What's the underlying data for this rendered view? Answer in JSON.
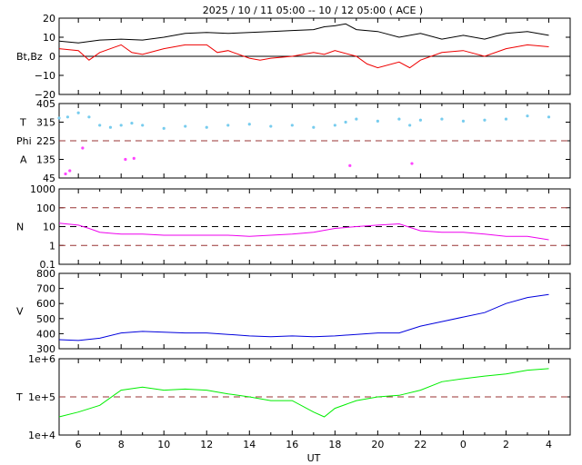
{
  "chart_data": {
    "type": "line",
    "title": "2025 / 10 / 11   05:00 -- 10 / 12   05:00 ( ACE )",
    "xlabel": "UT",
    "x_ticks": [
      "6",
      "8",
      "10",
      "12",
      "14",
      "16",
      "18",
      "20",
      "22",
      "0",
      "2",
      "4"
    ],
    "x_tick_hours": [
      6,
      8,
      10,
      12,
      14,
      16,
      18,
      20,
      22,
      24,
      26,
      28
    ],
    "x_range_hours": [
      5.1,
      29.0
    ],
    "panels": [
      {
        "id": "mag",
        "ylabel": "Bt,Bz",
        "ylim": [
          -20,
          20
        ],
        "y_ticks": [
          {
            "v": 20,
            "t": "20"
          },
          {
            "v": 10,
            "t": "10"
          },
          {
            "v": 0,
            "t": "0"
          },
          {
            "v": -10,
            "t": "−10"
          },
          {
            "v": -20,
            "t": "−20"
          }
        ],
        "ref_lines": [
          {
            "v": 0,
            "style": "solid",
            "color": "#000000"
          }
        ],
        "series": [
          {
            "color": "#000000",
            "points": [
              [
                5.1,
                8
              ],
              [
                6,
                7
              ],
              [
                7,
                8.5
              ],
              [
                8,
                9
              ],
              [
                9,
                8.5
              ],
              [
                10,
                10
              ],
              [
                11,
                12
              ],
              [
                12,
                12.5
              ],
              [
                13,
                12
              ],
              [
                14,
                12.5
              ],
              [
                15,
                13
              ],
              [
                16,
                13.5
              ],
              [
                17,
                14
              ],
              [
                17.5,
                15.5
              ],
              [
                18,
                16
              ],
              [
                18.5,
                17
              ],
              [
                19,
                14
              ],
              [
                20,
                13
              ],
              [
                21,
                10
              ],
              [
                22,
                12
              ],
              [
                23,
                9
              ],
              [
                24,
                11
              ],
              [
                25,
                9
              ],
              [
                26,
                12
              ],
              [
                27,
                13
              ],
              [
                28,
                11
              ]
            ]
          },
          {
            "color": "#ee0000",
            "points": [
              [
                5.1,
                4
              ],
              [
                6,
                3
              ],
              [
                6.5,
                -2
              ],
              [
                7,
                2
              ],
              [
                8,
                6
              ],
              [
                8.5,
                2
              ],
              [
                9,
                1
              ],
              [
                10,
                4
              ],
              [
                11,
                6
              ],
              [
                12,
                6
              ],
              [
                12.5,
                2
              ],
              [
                13,
                3
              ],
              [
                14,
                -1
              ],
              [
                14.5,
                -2
              ],
              [
                15,
                -1
              ],
              [
                16,
                0
              ],
              [
                17,
                2
              ],
              [
                17.5,
                1
              ],
              [
                18,
                3
              ],
              [
                19,
                0
              ],
              [
                19.5,
                -4
              ],
              [
                20,
                -6
              ],
              [
                21,
                -3
              ],
              [
                21.5,
                -6
              ],
              [
                22,
                -2
              ],
              [
                23,
                2
              ],
              [
                24,
                3
              ],
              [
                25,
                0
              ],
              [
                26,
                4
              ],
              [
                27,
                6
              ],
              [
                28,
                5
              ]
            ]
          }
        ]
      },
      {
        "id": "theta",
        "ylabel_top": "T",
        "ylabel_mid": "Phi",
        "ylabel_bottom": "A",
        "ylim": [
          45,
          405
        ],
        "y_ticks": [
          {
            "v": 405,
            "t": "405"
          },
          {
            "v": 315,
            "t": "315"
          },
          {
            "v": 225,
            "t": "225"
          },
          {
            "v": 135,
            "t": "135"
          },
          {
            "v": 45,
            "t": "45"
          }
        ],
        "ref_lines": [
          {
            "v": 225,
            "style": "dashed",
            "color": "#993333"
          }
        ],
        "series": [
          {
            "color": "#77ccee",
            "mode": "dots",
            "points": [
              [
                5.1,
                335
              ],
              [
                5.5,
                340
              ],
              [
                6,
                360
              ],
              [
                6.5,
                340
              ],
              [
                7,
                300
              ],
              [
                7.5,
                290
              ],
              [
                8,
                300
              ],
              [
                8.5,
                310
              ],
              [
                9,
                300
              ],
              [
                10,
                285
              ],
              [
                11,
                295
              ],
              [
                12,
                290
              ],
              [
                13,
                300
              ],
              [
                14,
                305
              ],
              [
                15,
                295
              ],
              [
                16,
                300
              ],
              [
                17,
                290
              ],
              [
                18,
                300
              ],
              [
                18.5,
                315
              ],
              [
                19,
                330
              ],
              [
                20,
                320
              ],
              [
                21,
                330
              ],
              [
                21.5,
                300
              ],
              [
                22,
                325
              ],
              [
                23,
                330
              ],
              [
                24,
                320
              ],
              [
                25,
                325
              ],
              [
                26,
                330
              ],
              [
                27,
                345
              ],
              [
                28,
                340
              ]
            ]
          },
          {
            "color": "#ff44ff",
            "mode": "dots",
            "points": [
              [
                5.4,
                65
              ],
              [
                5.6,
                80
              ],
              [
                6.2,
                190
              ],
              [
                8.2,
                135
              ],
              [
                8.6,
                140
              ],
              [
                18.7,
                105
              ],
              [
                21.6,
                115
              ]
            ]
          }
        ]
      },
      {
        "id": "density",
        "ylabel": "N",
        "log": true,
        "ylim": [
          0.1,
          1000
        ],
        "y_ticks": [
          {
            "v": 1000,
            "t": "1000"
          },
          {
            "v": 100,
            "t": "100"
          },
          {
            "v": 10,
            "t": "10"
          },
          {
            "v": 1,
            "t": "1"
          },
          {
            "v": 0.1,
            "t": "0.1"
          }
        ],
        "ref_lines": [
          {
            "v": 100,
            "style": "dashed",
            "color": "#993333"
          },
          {
            "v": 10,
            "style": "dashed",
            "color": "#000000"
          },
          {
            "v": 1,
            "style": "dashed",
            "color": "#993333"
          }
        ],
        "series": [
          {
            "color": "#ee00ee",
            "points": [
              [
                5.1,
                15
              ],
              [
                6,
                12
              ],
              [
                6.5,
                8
              ],
              [
                7,
                5
              ],
              [
                8,
                4
              ],
              [
                9,
                4
              ],
              [
                10,
                3.5
              ],
              [
                11,
                3.5
              ],
              [
                12,
                3.5
              ],
              [
                13,
                3.5
              ],
              [
                14,
                3
              ],
              [
                15,
                3.5
              ],
              [
                16,
                4
              ],
              [
                17,
                5
              ],
              [
                18,
                8
              ],
              [
                19,
                10
              ],
              [
                20,
                12
              ],
              [
                21,
                14
              ],
              [
                22,
                6
              ],
              [
                23,
                5
              ],
              [
                24,
                5
              ],
              [
                25,
                4
              ],
              [
                26,
                3
              ],
              [
                27,
                3
              ],
              [
                28,
                2
              ]
            ]
          }
        ]
      },
      {
        "id": "speed",
        "ylabel": "V",
        "ylim": [
          300,
          800
        ],
        "y_ticks": [
          {
            "v": 800,
            "t": "800"
          },
          {
            "v": 700,
            "t": "700"
          },
          {
            "v": 600,
            "t": "600"
          },
          {
            "v": 500,
            "t": "500"
          },
          {
            "v": 400,
            "t": "400"
          },
          {
            "v": 300,
            "t": "300"
          }
        ],
        "ref_lines": [],
        "series": [
          {
            "color": "#0000dd",
            "points": [
              [
                5.1,
                360
              ],
              [
                6,
                355
              ],
              [
                7,
                370
              ],
              [
                8,
                405
              ],
              [
                9,
                415
              ],
              [
                10,
                410
              ],
              [
                11,
                405
              ],
              [
                12,
                405
              ],
              [
                13,
                395
              ],
              [
                14,
                385
              ],
              [
                15,
                380
              ],
              [
                16,
                385
              ],
              [
                17,
                380
              ],
              [
                18,
                385
              ],
              [
                19,
                395
              ],
              [
                20,
                405
              ],
              [
                21,
                405
              ],
              [
                22,
                450
              ],
              [
                23,
                480
              ],
              [
                24,
                510
              ],
              [
                25,
                540
              ],
              [
                26,
                600
              ],
              [
                27,
                640
              ],
              [
                28,
                660
              ]
            ]
          }
        ]
      },
      {
        "id": "temperature",
        "ylabel": "T",
        "log": true,
        "ylim": [
          10000,
          1000000
        ],
        "y_ticks": [
          {
            "v": 1000000,
            "t": "1e+6"
          },
          {
            "v": 100000,
            "t": "1e+5"
          },
          {
            "v": 10000,
            "t": "1e+4"
          }
        ],
        "ref_lines": [
          {
            "v": 100000,
            "style": "dashed",
            "color": "#993333"
          }
        ],
        "series": [
          {
            "color": "#00ee00",
            "points": [
              [
                5.1,
                30000
              ],
              [
                6,
                40000
              ],
              [
                7,
                60000
              ],
              [
                8,
                150000
              ],
              [
                9,
                180000
              ],
              [
                10,
                150000
              ],
              [
                11,
                160000
              ],
              [
                12,
                150000
              ],
              [
                13,
                120000
              ],
              [
                14,
                100000
              ],
              [
                15,
                80000
              ],
              [
                16,
                80000
              ],
              [
                17,
                40000
              ],
              [
                17.5,
                30000
              ],
              [
                18,
                50000
              ],
              [
                19,
                80000
              ],
              [
                20,
                100000
              ],
              [
                21,
                110000
              ],
              [
                22,
                150000
              ],
              [
                23,
                250000
              ],
              [
                24,
                300000
              ],
              [
                25,
                350000
              ],
              [
                26,
                400000
              ],
              [
                27,
                500000
              ],
              [
                28,
                550000
              ]
            ]
          }
        ]
      }
    ]
  }
}
